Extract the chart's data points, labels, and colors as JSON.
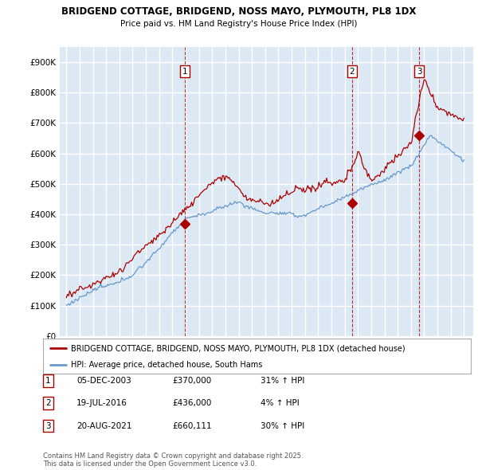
{
  "title1": "BRIDGEND COTTAGE, BRIDGEND, NOSS MAYO, PLYMOUTH, PL8 1DX",
  "title2": "Price paid vs. HM Land Registry's House Price Index (HPI)",
  "bg_color": "#dce9f5",
  "grid_color": "#ffffff",
  "red_color": "#aa0000",
  "blue_color": "#6699cc",
  "ylim": [
    0,
    950000
  ],
  "yticks": [
    0,
    100000,
    200000,
    300000,
    400000,
    500000,
    600000,
    700000,
    800000,
    900000
  ],
  "ytick_labels": [
    "£0",
    "£100K",
    "£200K",
    "£300K",
    "£400K",
    "£500K",
    "£600K",
    "£700K",
    "£800K",
    "£900K"
  ],
  "transactions": [
    {
      "date_num": 2003.92,
      "price": 370000,
      "label": "1"
    },
    {
      "date_num": 2016.54,
      "price": 436000,
      "label": "2"
    },
    {
      "date_num": 2021.63,
      "price": 660111,
      "label": "3"
    }
  ],
  "vline_dates": [
    2003.92,
    2016.54,
    2021.63
  ],
  "legend_red": "BRIDGEND COTTAGE, BRIDGEND, NOSS MAYO, PLYMOUTH, PL8 1DX (detached house)",
  "legend_blue": "HPI: Average price, detached house, South Hams",
  "table_rows": [
    {
      "num": "1",
      "date": "05-DEC-2003",
      "price": "£370,000",
      "change": "31% ↑ HPI"
    },
    {
      "num": "2",
      "date": "19-JUL-2016",
      "price": "£436,000",
      "change": "4% ↑ HPI"
    },
    {
      "num": "3",
      "date": "20-AUG-2021",
      "price": "£660,111",
      "change": "30% ↑ HPI"
    }
  ],
  "footnote": "Contains HM Land Registry data © Crown copyright and database right 2025.\nThis data is licensed under the Open Government Licence v3.0.",
  "xlim_start": 1994.5,
  "xlim_end": 2025.7
}
